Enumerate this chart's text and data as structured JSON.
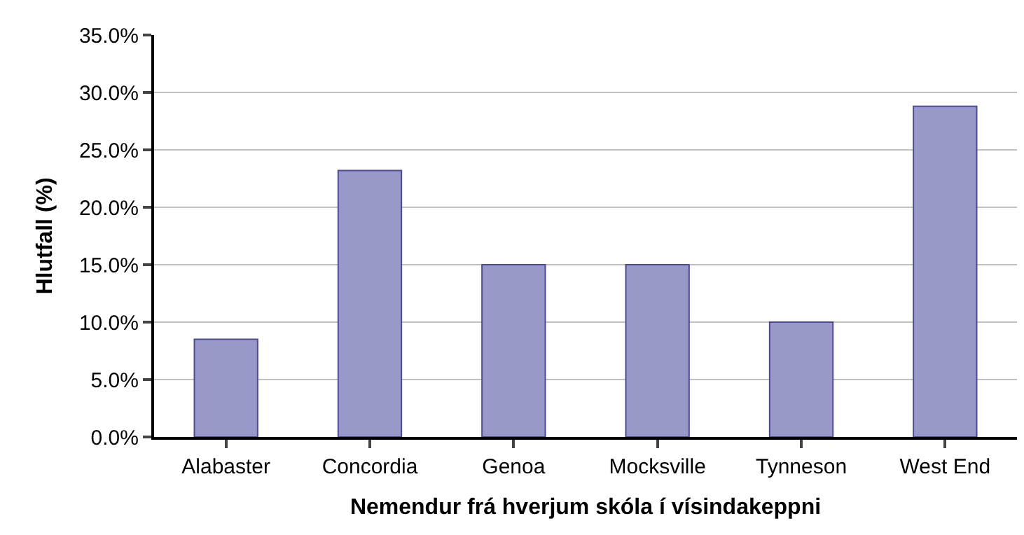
{
  "chart_data": {
    "type": "bar",
    "xlabel": "Nemendur frá hverjum skóla í vísindakeppni",
    "ylabel": "Hlutfall (%)",
    "categories": [
      "Alabaster",
      "Concordia",
      "Genoa",
      "Mocksville",
      "Tynneson",
      "West End"
    ],
    "values": [
      8.5,
      23.2,
      15.0,
      15.0,
      10.0,
      28.8
    ],
    "color": "#9999c9",
    "ylim": [
      0,
      35
    ],
    "yticks": [
      {
        "value": 0,
        "label": "0.0%"
      },
      {
        "value": 5,
        "label": "5.0%"
      },
      {
        "value": 10,
        "label": "10.0%"
      },
      {
        "value": 15,
        "label": "15.0%"
      },
      {
        "value": 20,
        "label": "20.0%"
      },
      {
        "value": 25,
        "label": "25.0%"
      },
      {
        "value": 30,
        "label": "30.0%"
      },
      {
        "value": 35,
        "label": "35.0%"
      }
    ],
    "grid": "y"
  }
}
